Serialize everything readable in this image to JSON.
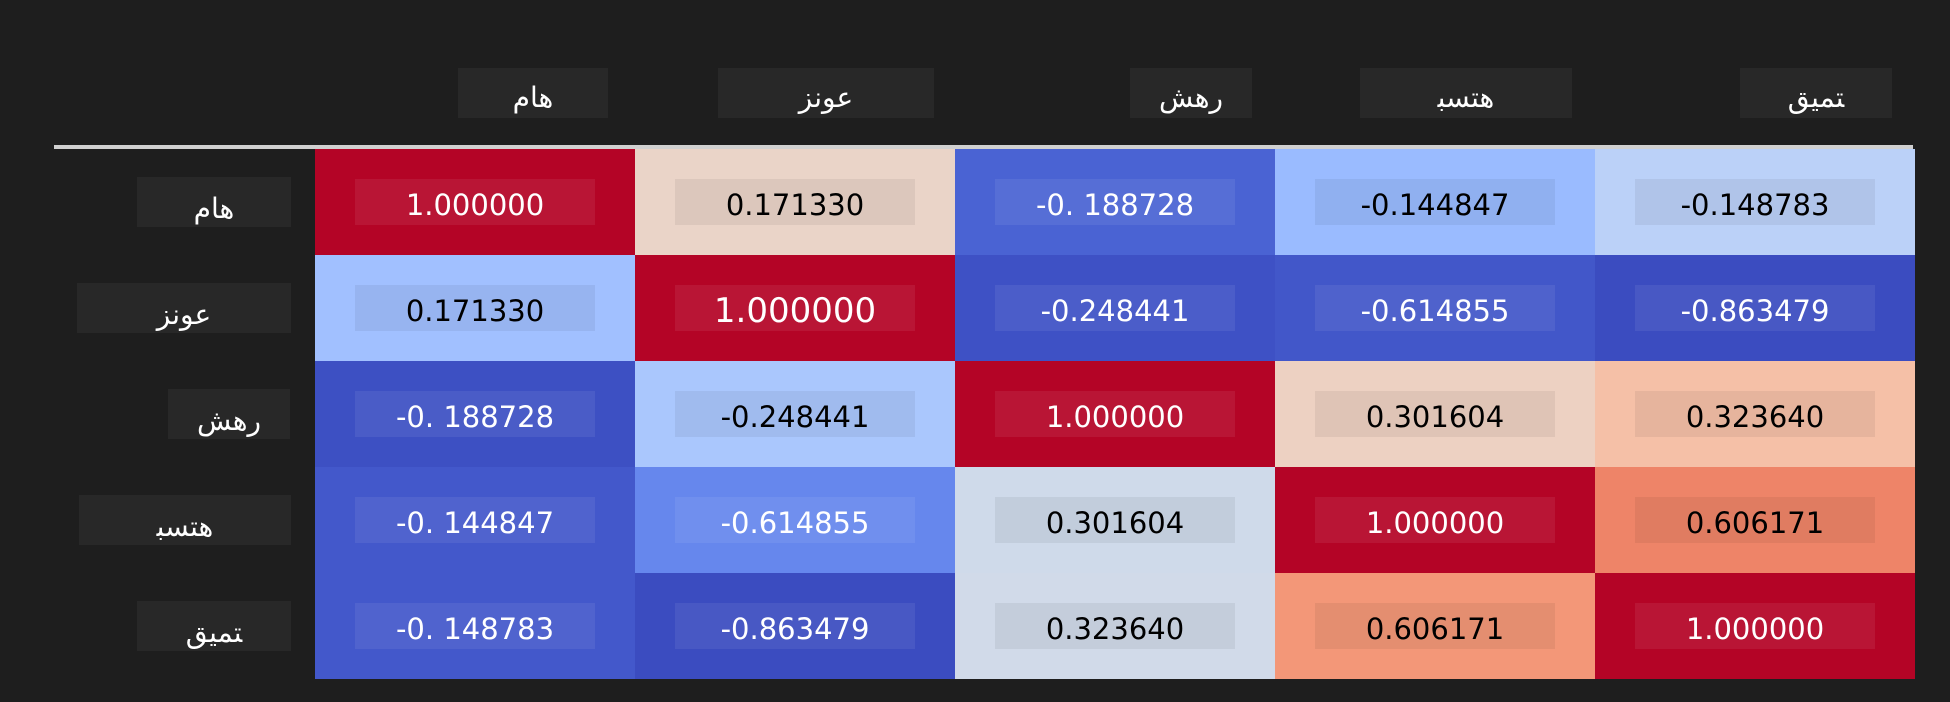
{
  "chart_data": {
    "type": "heatmap",
    "colormap": "coolwarm",
    "labels": [
      "ﻫﺎﻡ",
      "ﻋﻮﻧﺰ",
      "ﺭﻫﺶ",
      "ﻫﺘﺴﺒ",
      "ﺘﻤﻴﻖ"
    ],
    "values": [
      [
        1.0,
        0.17133,
        -0.188728,
        -0.144847,
        -0.148783
      ],
      [
        0.17133,
        1.0,
        -0.248441,
        -0.614855,
        -0.863479
      ],
      [
        -0.188728,
        -0.248441,
        1.0,
        0.301604,
        0.32364
      ],
      [
        -0.144847,
        -0.614855,
        0.301604,
        1.0,
        0.606171
      ],
      [
        -0.148783,
        -0.863479,
        0.32364,
        0.606171,
        1.0
      ]
    ],
    "display": [
      [
        "1.000000",
        "0.171330",
        "-0. 188728",
        "-0.144847",
        "-0.148783"
      ],
      [
        "0.171330",
        "1.000000",
        "-0.248441",
        "-0.614855",
        "-0.863479"
      ],
      [
        "-0. 188728",
        "-0.248441",
        "1.000000",
        "0.301604",
        "0.323640"
      ],
      [
        "-0. 144847",
        "-0.614855",
        "0.301604",
        "1.000000",
        "0.606171"
      ],
      [
        "-0. 148783",
        "-0.863479",
        "0.323640",
        "0.606171",
        "1.000000"
      ]
    ],
    "colors": [
      [
        "#b40426",
        "#ead4c8",
        "#4a63d3",
        "#9abbff",
        "#bbd1f8"
      ],
      [
        "#a1c0ff",
        "#b40426",
        "#3e51c5",
        "#4257c9",
        "#3b4cc0"
      ],
      [
        "#3d50c3",
        "#aac7fd",
        "#b40426",
        "#edd1c2",
        "#f5c0a7"
      ],
      [
        "#4358cb",
        "#6687ed",
        "#cfdaea",
        "#b40426",
        "#ee8468"
      ],
      [
        "#4358cb",
        "#3b4cc0",
        "#d1dae9",
        "#f39778",
        "#b40426"
      ]
    ]
  }
}
